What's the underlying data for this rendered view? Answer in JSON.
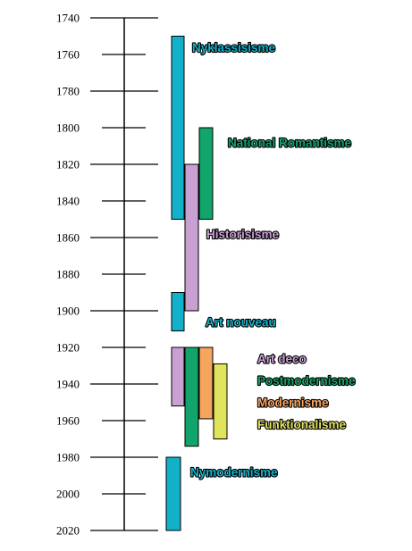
{
  "chart_data": {
    "type": "timeline",
    "title": "",
    "axis": {
      "ylim": [
        1740,
        2020
      ],
      "tick_step": 20,
      "ticks": [
        "1740",
        "1760",
        "1780",
        "1800",
        "1820",
        "1840",
        "1860",
        "1880",
        "1900",
        "1920",
        "1940",
        "1960",
        "1980",
        "2000",
        "2020"
      ]
    },
    "series": [
      {
        "name": "Nyklassisisme",
        "start": 1750,
        "end": 1850,
        "color": "#12b1c9",
        "label_color": "#12b1c9"
      },
      {
        "name": "National Romantisme",
        "start": 1800,
        "end": 1850,
        "color": "#11a56b",
        "label_color": "#11a56b"
      },
      {
        "name": "Historisisme",
        "start": 1820,
        "end": 1900,
        "color": "#c8a0d2",
        "label_color": "#c8a0d2"
      },
      {
        "name": "Art nouveau",
        "start": 1890,
        "end": 1911,
        "color": "#12b1c9",
        "label_color": "#12b1c9"
      },
      {
        "name": "Art deco",
        "start": 1920,
        "end": 1952,
        "color": "#c8a0d2",
        "label_color": "#c8a0d2"
      },
      {
        "name": "Postmodernisme",
        "start": 1920,
        "end": 1974,
        "color": "#11a56b",
        "label_color": "#11a56b"
      },
      {
        "name": "Modernisme",
        "start": 1920,
        "end": 1959,
        "color": "#f6a55e",
        "label_color": "#f6a55e"
      },
      {
        "name": "Funktionalisme",
        "start": 1929,
        "end": 1970,
        "color": "#e0e35c",
        "label_color": "#e0e35c"
      },
      {
        "name": "Nymodernisme",
        "start": 1980,
        "end": 2020,
        "color": "#12b1c9",
        "label_color": "#12b1c9"
      }
    ]
  }
}
